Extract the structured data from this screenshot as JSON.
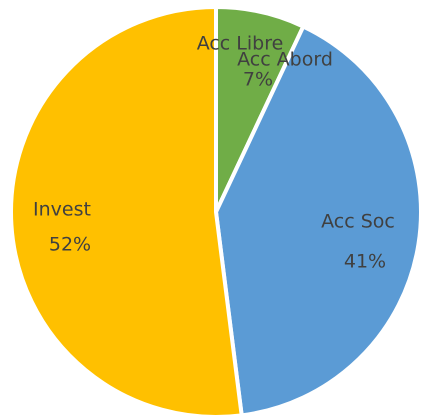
{
  "chart_data": {
    "type": "pie",
    "categories": [
      "Acc Libre",
      "Acc Abord",
      "Acc Soc",
      "Invest"
    ],
    "values": [
      0,
      7,
      41,
      52
    ],
    "value_labels": [
      null,
      "7%",
      "41%",
      "52%"
    ],
    "colors": [
      "#a5a5a5",
      "#70ad47",
      "#5b9bd5",
      "#ffc000"
    ]
  }
}
